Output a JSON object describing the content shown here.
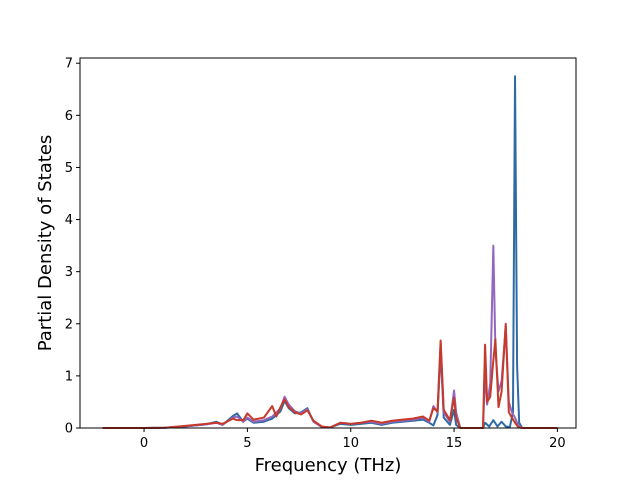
{
  "chart_data": {
    "type": "line",
    "title": "",
    "xlabel": "Frequency (THz)",
    "ylabel": "Partial Density of States",
    "xlim": [
      -3.1,
      20.9
    ],
    "ylim": [
      0,
      7.1
    ],
    "xticks": [
      0,
      5,
      10,
      15,
      20
    ],
    "yticks": [
      0,
      1,
      2,
      3,
      4,
      5,
      6,
      7
    ],
    "grid": false,
    "legend": "none",
    "series": [
      {
        "color": "#2f6aa3",
        "points": [
          [
            -2,
            0
          ],
          [
            0,
            0
          ],
          [
            1,
            0.005
          ],
          [
            2,
            0.03
          ],
          [
            3,
            0.07
          ],
          [
            3.5,
            0.12
          ],
          [
            3.8,
            0.06
          ],
          [
            4.3,
            0.23
          ],
          [
            4.5,
            0.28
          ],
          [
            4.8,
            0.12
          ],
          [
            5,
            0.18
          ],
          [
            5.3,
            0.1
          ],
          [
            5.8,
            0.12
          ],
          [
            6.2,
            0.18
          ],
          [
            6.6,
            0.32
          ],
          [
            6.8,
            0.52
          ],
          [
            7,
            0.38
          ],
          [
            7.3,
            0.28
          ],
          [
            7.6,
            0.3
          ],
          [
            7.9,
            0.38
          ],
          [
            8.2,
            0.12
          ],
          [
            8.6,
            0.02
          ],
          [
            9,
            0.01
          ],
          [
            9.5,
            0.08
          ],
          [
            10,
            0.06
          ],
          [
            10.5,
            0.08
          ],
          [
            11,
            0.1
          ],
          [
            11.5,
            0.06
          ],
          [
            12,
            0.1
          ],
          [
            12.5,
            0.12
          ],
          [
            13,
            0.14
          ],
          [
            13.5,
            0.16
          ],
          [
            13.8,
            0.1
          ],
          [
            14,
            0.05
          ],
          [
            14.2,
            0.25
          ],
          [
            14.35,
            1.5
          ],
          [
            14.5,
            0.2
          ],
          [
            14.8,
            0.06
          ],
          [
            15,
            0.35
          ],
          [
            15.1,
            0.06
          ],
          [
            15.3,
            0
          ],
          [
            16,
            0
          ],
          [
            16.4,
            0
          ],
          [
            16.5,
            0.1
          ],
          [
            16.7,
            0.03
          ],
          [
            16.9,
            0.15
          ],
          [
            17.1,
            0.03
          ],
          [
            17.3,
            0.12
          ],
          [
            17.5,
            0.03
          ],
          [
            17.7,
            0.02
          ],
          [
            17.85,
            0.3
          ],
          [
            17.95,
            6.75
          ],
          [
            18.05,
            1.2
          ],
          [
            18.15,
            0.1
          ],
          [
            18.3,
            0
          ],
          [
            19,
            0
          ],
          [
            20,
            0
          ]
        ]
      },
      {
        "color": "#9467bd",
        "points": [
          [
            -2,
            0
          ],
          [
            0,
            0
          ],
          [
            1,
            0.005
          ],
          [
            2,
            0.03
          ],
          [
            3,
            0.07
          ],
          [
            3.5,
            0.1
          ],
          [
            3.8,
            0.06
          ],
          [
            4.3,
            0.2
          ],
          [
            4.5,
            0.22
          ],
          [
            4.8,
            0.12
          ],
          [
            5,
            0.2
          ],
          [
            5.3,
            0.12
          ],
          [
            5.8,
            0.15
          ],
          [
            6.2,
            0.22
          ],
          [
            6.6,
            0.38
          ],
          [
            6.8,
            0.6
          ],
          [
            7,
            0.45
          ],
          [
            7.3,
            0.32
          ],
          [
            7.6,
            0.28
          ],
          [
            7.9,
            0.36
          ],
          [
            8.2,
            0.12
          ],
          [
            8.6,
            0.02
          ],
          [
            9,
            0.01
          ],
          [
            9.5,
            0.1
          ],
          [
            10,
            0.08
          ],
          [
            10.5,
            0.1
          ],
          [
            11,
            0.12
          ],
          [
            11.5,
            0.08
          ],
          [
            12,
            0.12
          ],
          [
            12.5,
            0.14
          ],
          [
            13,
            0.16
          ],
          [
            13.5,
            0.2
          ],
          [
            13.8,
            0.12
          ],
          [
            14,
            0.42
          ],
          [
            14.2,
            0.3
          ],
          [
            14.35,
            1.62
          ],
          [
            14.5,
            0.3
          ],
          [
            14.8,
            0.12
          ],
          [
            15,
            0.72
          ],
          [
            15.1,
            0.3
          ],
          [
            15.3,
            0
          ],
          [
            16,
            0
          ],
          [
            16.4,
            0
          ],
          [
            16.5,
            1.05
          ],
          [
            16.6,
            0.45
          ],
          [
            16.75,
            0.85
          ],
          [
            16.9,
            3.5
          ],
          [
            17,
            1.5
          ],
          [
            17.15,
            0.7
          ],
          [
            17.3,
            0.9
          ],
          [
            17.5,
            1.95
          ],
          [
            17.65,
            0.5
          ],
          [
            17.8,
            0.3
          ],
          [
            17.95,
            0.2
          ],
          [
            18.1,
            0.05
          ],
          [
            18.3,
            0
          ],
          [
            19,
            0
          ],
          [
            20,
            0
          ]
        ]
      },
      {
        "color": "#c53a2a",
        "points": [
          [
            -2,
            0
          ],
          [
            0,
            0
          ],
          [
            1,
            0.005
          ],
          [
            2,
            0.04
          ],
          [
            3,
            0.08
          ],
          [
            3.5,
            0.1
          ],
          [
            3.8,
            0.08
          ],
          [
            4.3,
            0.18
          ],
          [
            4.5,
            0.15
          ],
          [
            4.8,
            0.15
          ],
          [
            5,
            0.28
          ],
          [
            5.3,
            0.16
          ],
          [
            5.8,
            0.2
          ],
          [
            6.2,
            0.42
          ],
          [
            6.4,
            0.22
          ],
          [
            6.6,
            0.4
          ],
          [
            6.8,
            0.55
          ],
          [
            7,
            0.4
          ],
          [
            7.3,
            0.3
          ],
          [
            7.6,
            0.26
          ],
          [
            7.9,
            0.34
          ],
          [
            8.2,
            0.14
          ],
          [
            8.6,
            0.03
          ],
          [
            9,
            0.01
          ],
          [
            9.5,
            0.1
          ],
          [
            10,
            0.08
          ],
          [
            10.5,
            0.1
          ],
          [
            11,
            0.14
          ],
          [
            11.5,
            0.1
          ],
          [
            12,
            0.14
          ],
          [
            12.5,
            0.16
          ],
          [
            13,
            0.18
          ],
          [
            13.5,
            0.22
          ],
          [
            13.8,
            0.14
          ],
          [
            14,
            0.38
          ],
          [
            14.2,
            0.32
          ],
          [
            14.35,
            1.68
          ],
          [
            14.5,
            0.35
          ],
          [
            14.8,
            0.15
          ],
          [
            15,
            0.58
          ],
          [
            15.1,
            0.2
          ],
          [
            15.3,
            0
          ],
          [
            16,
            0
          ],
          [
            16.4,
            0
          ],
          [
            16.5,
            1.6
          ],
          [
            16.6,
            0.5
          ],
          [
            16.75,
            0.6
          ],
          [
            16.9,
            1.3
          ],
          [
            17,
            1.7
          ],
          [
            17.15,
            0.4
          ],
          [
            17.3,
            0.7
          ],
          [
            17.5,
            2.0
          ],
          [
            17.65,
            0.3
          ],
          [
            17.8,
            0.2
          ],
          [
            17.95,
            0.1
          ],
          [
            18.1,
            0.02
          ],
          [
            18.3,
            0
          ],
          [
            19,
            0
          ],
          [
            20,
            0
          ]
        ]
      }
    ]
  }
}
